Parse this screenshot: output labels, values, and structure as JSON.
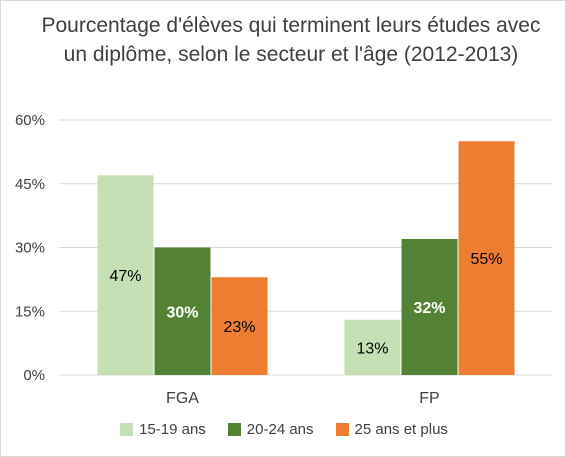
{
  "chart_data": {
    "type": "bar",
    "title": "Pourcentage d'élèves qui terminent leurs études avec un diplôme, selon le secteur et l'âge (2012-2013)",
    "categories": [
      "FGA",
      "FP"
    ],
    "series": [
      {
        "name": "15-19 ans",
        "values": [
          47,
          13
        ],
        "color": "#c5e0b4",
        "label_color": "#000000",
        "bold": false
      },
      {
        "name": "20-24 ans",
        "values": [
          30,
          32
        ],
        "color": "#548235",
        "label_color": "#ffffff",
        "bold": true
      },
      {
        "name": "25 ans et plus",
        "values": [
          23,
          55
        ],
        "color": "#ed7d31",
        "label_color": "#000000",
        "bold": false
      }
    ],
    "yticks": [
      "0%",
      "15%",
      "30%",
      "45%",
      "60%"
    ],
    "ylim": [
      0,
      60
    ],
    "unit": "%",
    "grid": true,
    "legend_position": "bottom",
    "colors": {
      "grid": "#d9d9d9",
      "text": "#404040"
    }
  }
}
